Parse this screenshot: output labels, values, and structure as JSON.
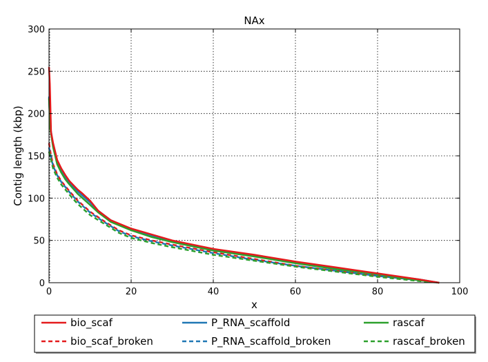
{
  "chart_data": {
    "type": "line",
    "title": "NAx",
    "xlabel": "x",
    "ylabel": "Contig length  (kbp)",
    "xlim": [
      0,
      100
    ],
    "ylim": [
      0,
      300
    ],
    "xticks": [
      0,
      20,
      40,
      60,
      80,
      100
    ],
    "yticks": [
      0,
      50,
      100,
      150,
      200,
      250,
      300
    ],
    "grid": true,
    "legend_position": "bottom",
    "series": [
      {
        "name": "bio_scaf",
        "color": "#e41a1c",
        "dash": "solid",
        "points": [
          [
            0,
            255
          ],
          [
            0.2,
            235
          ],
          [
            0.5,
            178
          ],
          [
            1,
            165
          ],
          [
            2,
            145
          ],
          [
            3,
            135
          ],
          [
            4,
            127
          ],
          [
            5,
            120
          ],
          [
            7,
            110
          ],
          [
            8,
            106
          ],
          [
            10,
            97
          ],
          [
            12,
            85
          ],
          [
            15,
            74
          ],
          [
            20,
            64
          ],
          [
            25,
            57
          ],
          [
            30,
            50
          ],
          [
            35,
            45
          ],
          [
            40,
            40
          ],
          [
            50,
            33
          ],
          [
            60,
            25
          ],
          [
            70,
            18
          ],
          [
            80,
            11
          ],
          [
            90,
            4
          ],
          [
            95,
            0
          ]
        ]
      },
      {
        "name": "bio_scaf_broken",
        "color": "#e41a1c",
        "dash": "dashed",
        "points": [
          [
            0,
            165
          ],
          [
            0.5,
            150
          ],
          [
            1,
            140
          ],
          [
            2,
            128
          ],
          [
            3,
            120
          ],
          [
            5,
            108
          ],
          [
            7,
            97
          ],
          [
            10,
            84
          ],
          [
            13,
            74
          ],
          [
            17,
            62
          ],
          [
            20,
            56
          ],
          [
            25,
            50
          ],
          [
            30,
            45
          ],
          [
            40,
            36
          ],
          [
            50,
            28
          ],
          [
            60,
            20
          ],
          [
            70,
            14
          ],
          [
            80,
            8
          ],
          [
            90,
            3
          ],
          [
            95,
            0
          ]
        ]
      },
      {
        "name": "P_RNA_scaffold",
        "color": "#1f77b4",
        "dash": "solid",
        "points": [
          [
            0,
            220
          ],
          [
            0.3,
            185
          ],
          [
            1,
            163
          ],
          [
            2,
            143
          ],
          [
            3,
            132
          ],
          [
            4,
            125
          ],
          [
            5,
            118
          ],
          [
            7,
            108
          ],
          [
            10,
            95
          ],
          [
            12,
            85
          ],
          [
            15,
            74
          ],
          [
            20,
            63
          ],
          [
            25,
            56
          ],
          [
            30,
            49
          ],
          [
            35,
            44
          ],
          [
            40,
            39
          ],
          [
            50,
            32
          ],
          [
            60,
            24
          ],
          [
            70,
            17
          ],
          [
            80,
            10
          ],
          [
            90,
            4
          ],
          [
            95,
            0
          ]
        ]
      },
      {
        "name": "P_RNA_scaffold_broken",
        "color": "#1f77b4",
        "dash": "dashed",
        "points": [
          [
            0,
            160
          ],
          [
            0.5,
            148
          ],
          [
            1,
            138
          ],
          [
            2,
            127
          ],
          [
            3,
            119
          ],
          [
            5,
            107
          ],
          [
            7,
            96
          ],
          [
            10,
            83
          ],
          [
            13,
            73
          ],
          [
            17,
            61
          ],
          [
            20,
            55
          ],
          [
            25,
            49
          ],
          [
            30,
            44
          ],
          [
            40,
            35
          ],
          [
            50,
            27
          ],
          [
            60,
            20
          ],
          [
            70,
            14
          ],
          [
            80,
            8
          ],
          [
            90,
            3
          ],
          [
            95,
            0
          ]
        ]
      },
      {
        "name": "rascaf",
        "color": "#2ca02c",
        "dash": "solid",
        "points": [
          [
            0,
            218
          ],
          [
            0.3,
            182
          ],
          [
            1,
            160
          ],
          [
            2,
            140
          ],
          [
            3,
            130
          ],
          [
            4,
            122
          ],
          [
            5,
            116
          ],
          [
            7,
            105
          ],
          [
            10,
            92
          ],
          [
            12,
            83
          ],
          [
            15,
            72
          ],
          [
            20,
            62
          ],
          [
            25,
            54
          ],
          [
            30,
            48
          ],
          [
            35,
            43
          ],
          [
            40,
            38
          ],
          [
            50,
            31
          ],
          [
            60,
            23
          ],
          [
            70,
            16
          ],
          [
            80,
            10
          ],
          [
            90,
            3
          ],
          [
            95,
            0
          ]
        ]
      },
      {
        "name": "rascaf_broken",
        "color": "#2ca02c",
        "dash": "dashed",
        "points": [
          [
            0,
            155
          ],
          [
            0.5,
            145
          ],
          [
            1,
            135
          ],
          [
            2,
            124
          ],
          [
            3,
            116
          ],
          [
            5,
            104
          ],
          [
            7,
            93
          ],
          [
            10,
            80
          ],
          [
            13,
            71
          ],
          [
            17,
            59
          ],
          [
            20,
            53
          ],
          [
            25,
            47
          ],
          [
            30,
            42
          ],
          [
            40,
            33
          ],
          [
            50,
            26
          ],
          [
            60,
            19
          ],
          [
            70,
            13
          ],
          [
            80,
            7
          ],
          [
            90,
            2
          ],
          [
            95,
            0
          ]
        ]
      }
    ]
  }
}
